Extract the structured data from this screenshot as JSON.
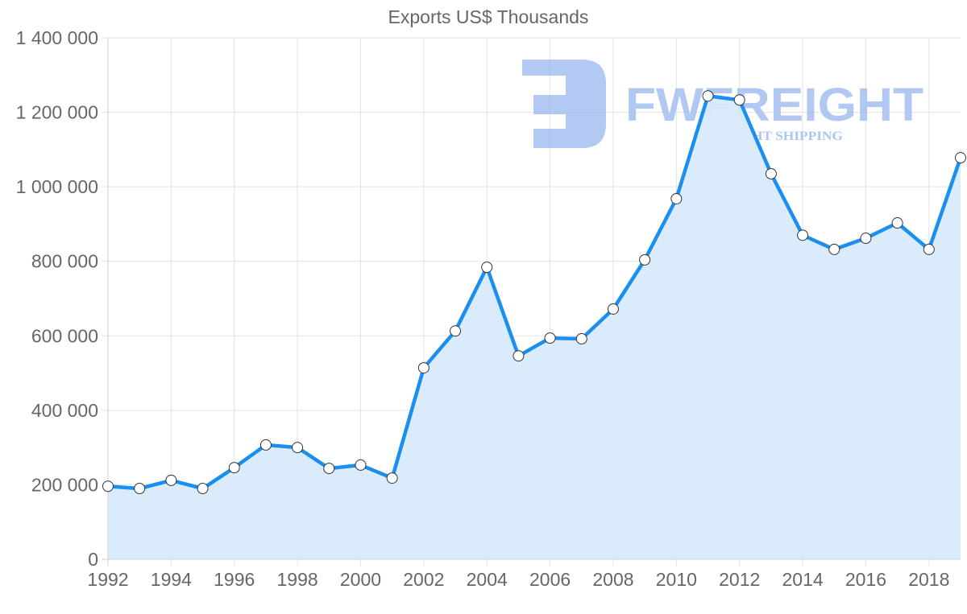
{
  "chart_data": {
    "type": "area",
    "title": "Exports US$ Thousands",
    "xlabel": "",
    "ylabel": "",
    "x": [
      1992,
      1993,
      1994,
      1995,
      1996,
      1997,
      1998,
      1999,
      2000,
      2001,
      2002,
      2003,
      2004,
      2005,
      2006,
      2007,
      2008,
      2009,
      2010,
      2011,
      2012,
      2013,
      2014,
      2015,
      2016,
      2017,
      2018,
      2019
    ],
    "series": [
      {
        "name": "Exports",
        "values": [
          196000,
          190000,
          212000,
          190000,
          246000,
          307000,
          300000,
          244000,
          253000,
          218000,
          514000,
          613000,
          784000,
          546000,
          594000,
          592000,
          672000,
          804000,
          968000,
          1244000,
          1233000,
          1035000,
          870000,
          832000,
          862000,
          903000,
          832000,
          1078000
        ]
      }
    ],
    "ylim": [
      0,
      1400000
    ],
    "yticks": [
      0,
      200000,
      400000,
      600000,
      800000,
      1000000,
      1200000,
      1400000
    ],
    "ytick_labels": [
      "0",
      "200 000",
      "400 000",
      "600 000",
      "800 000",
      "1 000 000",
      "1 200 000",
      "1 400 000"
    ],
    "xtick_labels": [
      "1992",
      "1994",
      "1996",
      "1998",
      "2000",
      "2002",
      "2004",
      "2006",
      "2008",
      "2010",
      "2012",
      "2014",
      "2016",
      "2018"
    ],
    "grid": true,
    "legend": "none",
    "colors": {
      "line": "#1a8ff0",
      "fill": "#d8ebfc",
      "marker_fill": "#ffffff",
      "marker_stroke": "#333333"
    }
  },
  "watermark": {
    "brand": "FWFREIGHT",
    "tagline": "FREIGHT SHIPPING",
    "color": "#9ebcf0"
  }
}
